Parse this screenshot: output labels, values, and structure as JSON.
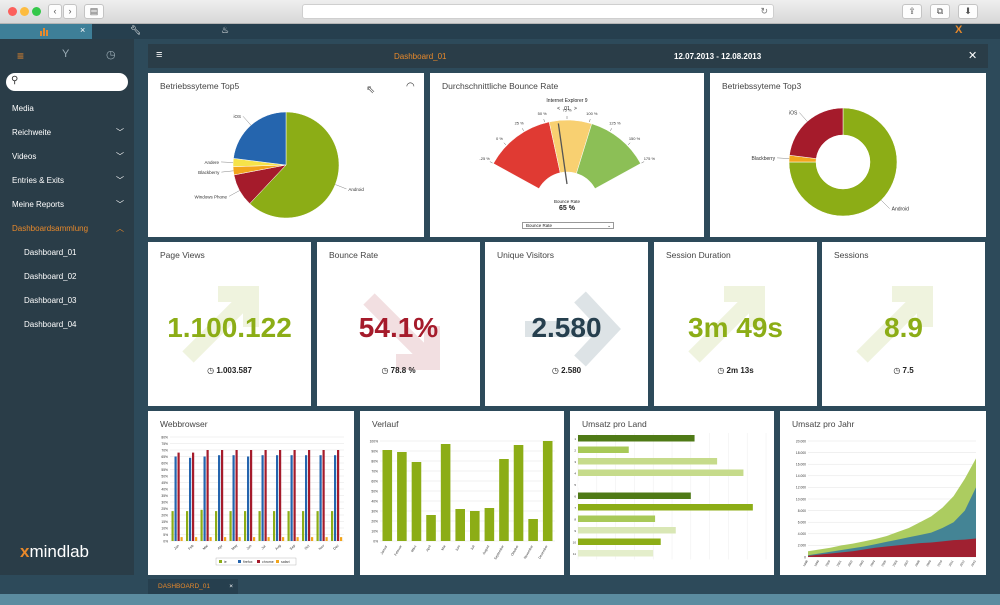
{
  "app_tabs": {
    "close": "×"
  },
  "sidebar": {
    "items": [
      {
        "label": "Media",
        "chevron": ""
      },
      {
        "label": "Reichweite",
        "chevron": "﹀"
      },
      {
        "label": "Videos",
        "chevron": "﹀"
      },
      {
        "label": "Entries & Exits",
        "chevron": "﹀"
      },
      {
        "label": "Meine Reports",
        "chevron": "﹀"
      },
      {
        "label": "Dashboardsammlung",
        "chevron": "︿"
      },
      {
        "label": "Dashboard_01",
        "chevron": ""
      },
      {
        "label": "Dashboard_02",
        "chevron": ""
      },
      {
        "label": "Dashboard_03",
        "chevron": ""
      },
      {
        "label": "Dashboard_04",
        "chevron": ""
      }
    ],
    "logo_x": "x",
    "logo_text": "mindlab"
  },
  "dashboard": {
    "title": "Dashboard_01",
    "date_range": "12.07.2013 - 12.08.2013",
    "close": "✕"
  },
  "panels": {
    "os_top5": {
      "title": "Betriebssyteme Top5",
      "slices": [
        {
          "label": "Android",
          "value": 62,
          "color": "#8cad16"
        },
        {
          "label": "Windows Phone",
          "value": 10,
          "color": "#a51b2b"
        },
        {
          "label": "Blackberry",
          "value": 2.5,
          "color": "#f2a51c"
        },
        {
          "label": "Andere",
          "value": 2.5,
          "color": "#f6e34a"
        },
        {
          "label": "iOS",
          "value": 23,
          "color": "#2565ae"
        }
      ]
    },
    "bounce_gauge": {
      "title": "Durchschnittliche Bounce Rate",
      "browser": "Internet Explorer 9",
      "nav_prev": "<",
      "nav_index": "01",
      "nav_next": ">",
      "ticks": [
        "-25 %",
        "0 %",
        "25 %",
        "50 %",
        "75 %",
        "100 %",
        "125 %",
        "150 %",
        "175 %"
      ],
      "value_label": "Bounce Rate",
      "value": "65 %",
      "value_num": 65,
      "select": "Bounce Rate"
    },
    "os_top3": {
      "title": "Betriebssyteme Top3",
      "slices": [
        {
          "label": "Android",
          "value": 75,
          "color": "#8cad16"
        },
        {
          "label": "Blackberry",
          "value": 2,
          "color": "#f2a51c"
        },
        {
          "label": "iOS",
          "value": 23,
          "color": "#a51b2b"
        }
      ]
    },
    "kpis": [
      {
        "title": "Page Views",
        "value": "1.100.122",
        "previous": "1.003.587",
        "color": "#8cad16",
        "trend": "up"
      },
      {
        "title": "Bounce Rate",
        "value": "54.1%",
        "previous": "78.8 %",
        "color": "#a51b2b",
        "trend": "down"
      },
      {
        "title": "Unique Visitors",
        "value": "2.580",
        "previous": "2.580",
        "color": "#263f4e",
        "trend": "flat"
      },
      {
        "title": "Session Duration",
        "value": "3m 49s",
        "previous": "2m 13s",
        "color": "#8cad16",
        "trend": "up"
      },
      {
        "title": "Sessions",
        "value": "8.9",
        "previous": "7.5",
        "color": "#8cad16",
        "trend": "up"
      }
    ],
    "webbrowser": {
      "title": "Webbrowser"
    },
    "verlauf": {
      "title": "Verlauf"
    },
    "umsatz_land": {
      "title": "Umsatz pro Land"
    },
    "umsatz_jahr": {
      "title": "Umsatz pro Jahr"
    }
  },
  "chart_data": [
    {
      "type": "bar",
      "title": "Webbrowser",
      "categories": [
        "Jan",
        "Feb",
        "Mar",
        "Apr",
        "May",
        "Jun",
        "Jul",
        "Aug",
        "Sep",
        "Oct",
        "Nov",
        "Dec"
      ],
      "ylim": [
        0,
        80
      ],
      "yticks": [
        "0%",
        "5%",
        "10%",
        "15%",
        "20%",
        "25%",
        "30%",
        "35%",
        "40%",
        "45%",
        "50%",
        "55%",
        "60%",
        "65%",
        "70%",
        "75%",
        "80%"
      ],
      "series": [
        {
          "name": "ie",
          "color": "#8cad16",
          "values": [
            23,
            23,
            24,
            23,
            23,
            23,
            23,
            23,
            23,
            23,
            23,
            23
          ]
        },
        {
          "name": "firefox",
          "color": "#2565ae",
          "values": [
            65,
            64,
            65,
            66,
            66,
            65,
            66,
            66,
            66,
            66,
            66,
            66
          ]
        },
        {
          "name": "chrome",
          "color": "#a51b2b",
          "values": [
            68,
            68,
            70,
            70,
            70,
            70,
            70,
            70,
            70,
            70,
            70,
            70
          ]
        },
        {
          "name": "safari",
          "color": "#f2a51c",
          "values": [
            3,
            3,
            3,
            3,
            3,
            3,
            3,
            3,
            3,
            3,
            3,
            3
          ]
        }
      ],
      "legend": "bottom"
    },
    {
      "type": "bar",
      "title": "Verlauf",
      "categories": [
        "Januar",
        "Februar",
        "März",
        "April",
        "Mai",
        "Juni",
        "Juli",
        "August",
        "September",
        "Oktober",
        "November",
        "Dezember"
      ],
      "ylim": [
        0,
        100
      ],
      "yticks": [
        "0%",
        "10%",
        "20%",
        "30%",
        "40%",
        "50%",
        "60%",
        "70%",
        "80%",
        "90%",
        "100%"
      ],
      "values": [
        91,
        89,
        79,
        26,
        97,
        32,
        30,
        33,
        82,
        96,
        22,
        100
      ],
      "color": "#8cad16"
    },
    {
      "type": "bar",
      "title": "Umsatz pro Land",
      "orientation": "horizontal",
      "categories": [
        "1",
        "2",
        "3",
        "4",
        "5",
        "6",
        "7",
        "8",
        "9",
        "10",
        "11"
      ],
      "values": [
        62,
        27,
        74,
        88,
        5,
        60,
        93,
        41,
        52,
        44,
        40
      ],
      "colors": [
        "#4f7a16",
        "#a8c957",
        "#c6db8b",
        "#c6db8b",
        "#ffffff",
        "#4f7a16",
        "#8cad16",
        "#a8c957",
        "#d9e7b5",
        "#8cad16",
        "#e4eecb"
      ]
    },
    {
      "type": "area",
      "title": "Umsatz pro Jahr",
      "x": [
        1998,
        1999,
        2000,
        2001,
        2002,
        2003,
        2004,
        2005,
        2006,
        2007,
        2008,
        2009,
        2010,
        2011,
        2012,
        2013
      ],
      "ylim": [
        0,
        20000
      ],
      "yticks": [
        "0",
        "2.000",
        "4.000",
        "6.000",
        "8.000",
        "10.000",
        "12.000",
        "14.000",
        "16.000",
        "18.000",
        "20.000"
      ],
      "series": [
        {
          "color": "#a51b2b",
          "values": [
            200,
            400,
            600,
            800,
            1000,
            1300,
            1600,
            1800,
            2000,
            2200,
            2400,
            2500,
            2700,
            2900,
            3000,
            3200
          ]
        },
        {
          "color": "#3e7f98",
          "values": [
            300,
            600,
            900,
            1200,
            1500,
            1800,
            2200,
            2600,
            3000,
            3400,
            3800,
            4200,
            5000,
            6000,
            8000,
            12000
          ]
        },
        {
          "color": "#a8c957",
          "values": [
            1000,
            1300,
            1600,
            2000,
            2300,
            2700,
            3100,
            3600,
            4300,
            5000,
            6000,
            7000,
            8500,
            10500,
            13500,
            17000
          ]
        }
      ]
    }
  ]
}
